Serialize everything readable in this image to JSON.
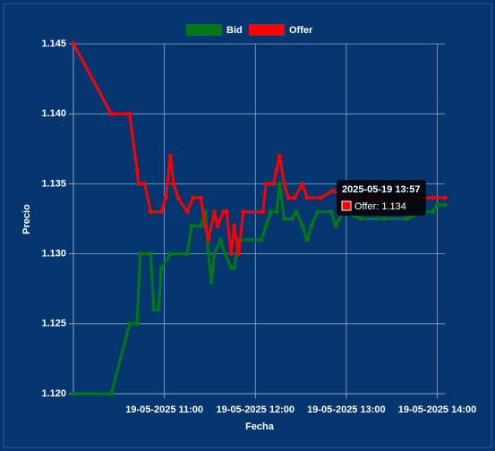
{
  "chart_data": {
    "type": "line",
    "x_label": "Fecha",
    "y_label": "Precio",
    "series": [
      {
        "name": "Bid",
        "color": "#007a12",
        "x": [
          "2025-05-19 10:00",
          "2025-05-19 10:25",
          "2025-05-19 10:37",
          "2025-05-19 10:42",
          "2025-05-19 10:44",
          "2025-05-19 10:51",
          "2025-05-19 10:53",
          "2025-05-19 10:56",
          "2025-05-19 10:58",
          "2025-05-19 11:04",
          "2025-05-19 11:15",
          "2025-05-19 11:18",
          "2025-05-19 11:24",
          "2025-05-19 11:27",
          "2025-05-19 11:29",
          "2025-05-19 11:31",
          "2025-05-19 11:33",
          "2025-05-19 11:37",
          "2025-05-19 11:40",
          "2025-05-19 11:44",
          "2025-05-19 11:46",
          "2025-05-19 11:49",
          "2025-05-19 12:04",
          "2025-05-19 12:07",
          "2025-05-19 12:10",
          "2025-05-19 12:14",
          "2025-05-19 12:16",
          "2025-05-19 12:19",
          "2025-05-19 12:24",
          "2025-05-19 12:27",
          "2025-05-19 12:31",
          "2025-05-19 12:34",
          "2025-05-19 12:37",
          "2025-05-19 12:41",
          "2025-05-19 12:50",
          "2025-05-19 12:53",
          "2025-05-19 12:58",
          "2025-05-19 13:10",
          "2025-05-19 13:25",
          "2025-05-19 13:40",
          "2025-05-19 13:50",
          "2025-05-19 13:57",
          "2025-05-19 14:00",
          "2025-05-19 14:05"
        ],
        "values": [
          1.12,
          1.12,
          1.125,
          1.125,
          1.13,
          1.13,
          1.126,
          1.126,
          1.129,
          1.13,
          1.13,
          1.132,
          1.132,
          1.133,
          1.13,
          1.128,
          1.13,
          1.131,
          1.13,
          1.129,
          1.129,
          1.131,
          1.131,
          1.132,
          1.133,
          1.133,
          1.135,
          1.1325,
          1.1325,
          1.133,
          1.132,
          1.131,
          1.132,
          1.133,
          1.133,
          1.132,
          1.133,
          1.1325,
          1.1325,
          1.1325,
          1.133,
          1.133,
          1.1335,
          1.1335
        ]
      },
      {
        "name": "Offer",
        "color": "#ff0000",
        "x": [
          "2025-05-19 10:00",
          "2025-05-19 10:25",
          "2025-05-19 10:37",
          "2025-05-19 10:42",
          "2025-05-19 10:43",
          "2025-05-19 10:47",
          "2025-05-19 10:51",
          "2025-05-19 10:58",
          "2025-05-19 11:01",
          "2025-05-19 11:04",
          "2025-05-19 11:06",
          "2025-05-19 11:09",
          "2025-05-19 11:15",
          "2025-05-19 11:19",
          "2025-05-19 11:24",
          "2025-05-19 11:27",
          "2025-05-19 11:29",
          "2025-05-19 11:33",
          "2025-05-19 11:35",
          "2025-05-19 11:39",
          "2025-05-19 11:41",
          "2025-05-19 11:44",
          "2025-05-19 11:46",
          "2025-05-19 11:49",
          "2025-05-19 11:52",
          "2025-05-19 12:05",
          "2025-05-19 12:07",
          "2025-05-19 12:12",
          "2025-05-19 12:14",
          "2025-05-19 12:16",
          "2025-05-19 12:19",
          "2025-05-19 12:22",
          "2025-05-19 12:26",
          "2025-05-19 12:31",
          "2025-05-19 12:34",
          "2025-05-19 12:43",
          "2025-05-19 12:51",
          "2025-05-19 13:00",
          "2025-05-19 13:20",
          "2025-05-19 13:31",
          "2025-05-19 13:46",
          "2025-05-19 13:57",
          "2025-05-19 14:05"
        ],
        "values": [
          1.145,
          1.14,
          1.14,
          1.136,
          1.135,
          1.135,
          1.133,
          1.133,
          1.134,
          1.137,
          1.135,
          1.134,
          1.133,
          1.134,
          1.134,
          1.132,
          1.131,
          1.133,
          1.132,
          1.133,
          1.133,
          1.13,
          1.132,
          1.13,
          1.133,
          1.133,
          1.135,
          1.135,
          1.136,
          1.137,
          1.135,
          1.134,
          1.134,
          1.135,
          1.134,
          1.134,
          1.1345,
          1.134,
          1.134,
          1.1335,
          1.134,
          1.134,
          1.134
        ]
      }
    ],
    "xlim": [
      "2025-05-19 10:00",
      "2025-05-19 14:05"
    ],
    "xticks": [
      {
        "value": "2025-05-19 11:00",
        "label": "19-05-2025 11:00"
      },
      {
        "value": "2025-05-19 12:00",
        "label": "19-05-2025 12:00"
      },
      {
        "value": "2025-05-19 13:00",
        "label": "19-05-2025 13:00"
      },
      {
        "value": "2025-05-19 14:00",
        "label": "19-05-2025 14:00"
      }
    ],
    "ylim": [
      1.12,
      1.145
    ],
    "yticks": [
      {
        "value": 1.12,
        "label": "1.120"
      },
      1.125,
      {
        "value": 1.13,
        "label": "1.130"
      },
      1.135,
      {
        "value": 1.14,
        "label": "1.140"
      },
      1.145
    ],
    "grid": true,
    "legend": "top",
    "tooltip": {
      "title": "2025-05-19 13:57",
      "label": "Offer: 1.134"
    }
  }
}
